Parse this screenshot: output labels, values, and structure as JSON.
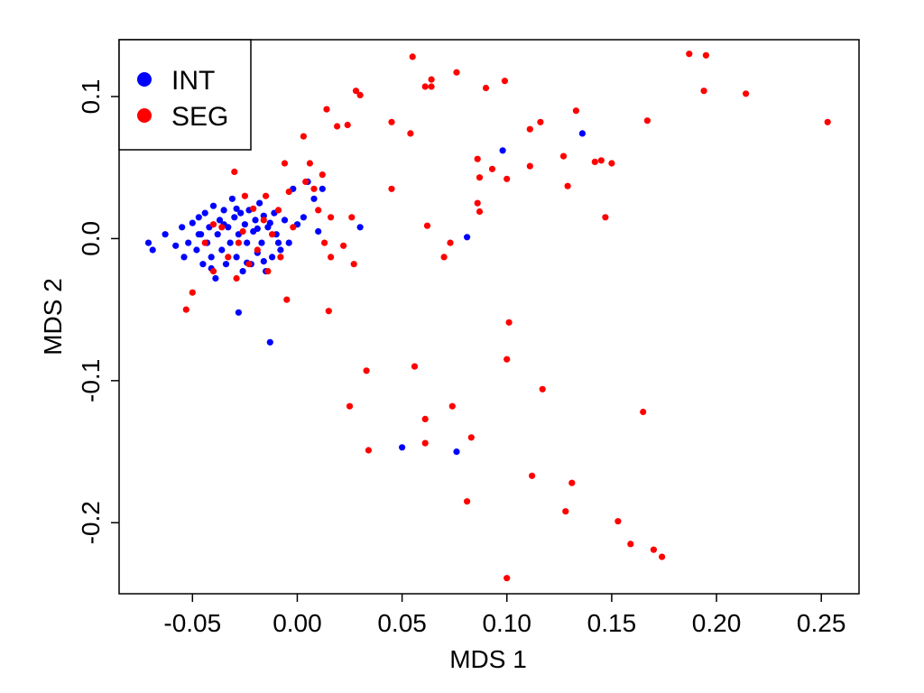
{
  "chart_data": {
    "type": "scatter",
    "title": "",
    "xlabel": "MDS 1",
    "ylabel": "MDS 2",
    "xlim": [
      -0.085,
      0.268
    ],
    "ylim": [
      -0.25,
      0.14
    ],
    "x_ticks": [
      -0.05,
      0.0,
      0.05,
      0.1,
      0.15,
      0.2,
      0.25
    ],
    "x_tick_labels": [
      "-0.05",
      "0.00",
      "0.05",
      "0.10",
      "0.15",
      "0.20",
      "0.25"
    ],
    "y_ticks": [
      -0.2,
      -0.1,
      0.0,
      0.1
    ],
    "y_tick_labels": [
      "-0.2",
      "-0.1",
      "0.0",
      "0.1"
    ],
    "grid": false,
    "legend_position": "top-left",
    "series": [
      {
        "name": "INT",
        "color": "#0000ff",
        "points": [
          [
            -0.071,
            -0.003
          ],
          [
            -0.069,
            -0.008
          ],
          [
            -0.063,
            0.003
          ],
          [
            -0.058,
            -0.005
          ],
          [
            -0.055,
            0.008
          ],
          [
            -0.054,
            -0.013
          ],
          [
            -0.052,
            -0.003
          ],
          [
            -0.05,
            0.011
          ],
          [
            -0.048,
            -0.008
          ],
          [
            -0.047,
            0.015
          ],
          [
            -0.046,
            0.003
          ],
          [
            -0.045,
            -0.018
          ],
          [
            -0.044,
            0.018
          ],
          [
            -0.043,
            -0.003
          ],
          [
            -0.042,
            0.008
          ],
          [
            -0.041,
            -0.013
          ],
          [
            -0.04,
            0.023
          ],
          [
            -0.039,
            -0.028
          ],
          [
            -0.038,
            0.003
          ],
          [
            -0.037,
            0.013
          ],
          [
            -0.036,
            -0.008
          ],
          [
            -0.035,
            0.02
          ],
          [
            -0.034,
            -0.018
          ],
          [
            -0.033,
            0.008
          ],
          [
            -0.032,
            -0.003
          ],
          [
            -0.031,
            0.028
          ],
          [
            -0.03,
            0.015
          ],
          [
            -0.029,
            -0.013
          ],
          [
            -0.028,
            0.003
          ],
          [
            -0.028,
            -0.052
          ],
          [
            -0.027,
            0.018
          ],
          [
            -0.026,
            -0.023
          ],
          [
            -0.025,
            0.01
          ],
          [
            -0.024,
            -0.003
          ],
          [
            -0.023,
            0.02
          ],
          [
            -0.022,
            -0.018
          ],
          [
            -0.021,
            0.005
          ],
          [
            -0.02,
            0.013
          ],
          [
            -0.019,
            -0.01
          ],
          [
            -0.018,
            0.025
          ],
          [
            -0.017,
            -0.003
          ],
          [
            -0.016,
            0.016
          ],
          [
            -0.015,
            -0.023
          ],
          [
            -0.014,
            0.008
          ],
          [
            -0.013,
            -0.073
          ],
          [
            -0.012,
            -0.013
          ],
          [
            -0.011,
            0.018
          ],
          [
            -0.01,
            0.003
          ],
          [
            -0.008,
            -0.008
          ],
          [
            -0.006,
            0.013
          ],
          [
            -0.004,
            -0.003
          ],
          [
            -0.002,
            0.035
          ],
          [
            0.0,
            0.01
          ],
          [
            0.003,
            0.015
          ],
          [
            0.005,
            0.04
          ],
          [
            0.008,
            0.028
          ],
          [
            0.01,
            0.005
          ],
          [
            0.012,
            0.035
          ],
          [
            0.03,
            0.008
          ],
          [
            -0.047,
            0.003
          ],
          [
            -0.041,
            -0.021
          ],
          [
            -0.035,
            0.01
          ],
          [
            -0.029,
            0.021
          ],
          [
            -0.024,
            -0.017
          ],
          [
            -0.019,
            0.007
          ],
          [
            -0.016,
            -0.016
          ],
          [
            -0.013,
            0.011
          ],
          [
            -0.009,
            -0.003
          ],
          [
            0.05,
            -0.147
          ],
          [
            0.076,
            -0.15
          ],
          [
            0.081,
            0.001
          ],
          [
            0.098,
            0.062
          ],
          [
            0.136,
            0.074
          ]
        ]
      },
      {
        "name": "SEG",
        "color": "#ff0000",
        "points": [
          [
            -0.053,
            -0.05
          ],
          [
            -0.05,
            -0.038
          ],
          [
            -0.044,
            -0.003
          ],
          [
            -0.04,
            -0.023
          ],
          [
            -0.036,
            0.008
          ],
          [
            -0.033,
            -0.013
          ],
          [
            -0.03,
            0.047
          ],
          [
            -0.029,
            -0.028
          ],
          [
            -0.026,
            0.005
          ],
          [
            -0.023,
            -0.018
          ],
          [
            -0.021,
            0.021
          ],
          [
            -0.019,
            -0.008
          ],
          [
            -0.016,
            0.013
          ],
          [
            -0.014,
            -0.023
          ],
          [
            -0.012,
            0.003
          ],
          [
            -0.009,
            0.02
          ],
          [
            -0.008,
            -0.013
          ],
          [
            -0.006,
            0.053
          ],
          [
            -0.005,
            -0.043
          ],
          [
            -0.004,
            0.033
          ],
          [
            -0.002,
            0.008
          ],
          [
            0.003,
            0.072
          ],
          [
            0.004,
            0.04
          ],
          [
            0.006,
            0.053
          ],
          [
            0.008,
            0.035
          ],
          [
            0.01,
            0.02
          ],
          [
            0.012,
            0.045
          ],
          [
            0.013,
            -0.003
          ],
          [
            0.014,
            0.091
          ],
          [
            0.015,
            -0.051
          ],
          [
            0.016,
            0.015
          ],
          [
            0.016,
            -0.013
          ],
          [
            0.019,
            0.079
          ],
          [
            0.022,
            -0.005
          ],
          [
            0.024,
            0.08
          ],
          [
            0.025,
            -0.118
          ],
          [
            0.026,
            0.015
          ],
          [
            0.027,
            -0.018
          ],
          [
            0.028,
            0.104
          ],
          [
            0.03,
            0.101
          ],
          [
            0.033,
            -0.093
          ],
          [
            0.034,
            -0.149
          ],
          [
            0.045,
            0.082
          ],
          [
            0.045,
            0.035
          ],
          [
            0.054,
            0.074
          ],
          [
            0.055,
            0.128
          ],
          [
            0.056,
            -0.09
          ],
          [
            0.061,
            0.107
          ],
          [
            0.061,
            -0.127
          ],
          [
            0.061,
            -0.144
          ],
          [
            0.064,
            0.112
          ],
          [
            0.064,
            0.107
          ],
          [
            0.07,
            -0.013
          ],
          [
            0.073,
            -0.003
          ],
          [
            0.074,
            -0.118
          ],
          [
            0.076,
            0.117
          ],
          [
            0.081,
            -0.185
          ],
          [
            0.083,
            -0.14
          ],
          [
            0.086,
            0.056
          ],
          [
            0.086,
            0.025
          ],
          [
            0.087,
            0.043
          ],
          [
            0.09,
            0.106
          ],
          [
            0.093,
            0.049
          ],
          [
            0.099,
            0.111
          ],
          [
            0.1,
            0.042
          ],
          [
            0.1,
            -0.085
          ],
          [
            0.101,
            -0.059
          ],
          [
            0.1,
            -0.239
          ],
          [
            0.111,
            0.077
          ],
          [
            0.111,
            0.051
          ],
          [
            0.112,
            -0.167
          ],
          [
            0.116,
            0.082
          ],
          [
            0.117,
            -0.106
          ],
          [
            0.127,
            0.058
          ],
          [
            0.128,
            -0.192
          ],
          [
            0.129,
            0.037
          ],
          [
            0.131,
            -0.172
          ],
          [
            0.133,
            0.09
          ],
          [
            0.142,
            0.054
          ],
          [
            0.145,
            0.055
          ],
          [
            0.147,
            0.015
          ],
          [
            0.15,
            0.053
          ],
          [
            0.153,
            -0.199
          ],
          [
            0.159,
            -0.215
          ],
          [
            0.165,
            -0.122
          ],
          [
            0.167,
            0.083
          ],
          [
            0.17,
            -0.219
          ],
          [
            0.174,
            -0.224
          ],
          [
            0.187,
            0.13
          ],
          [
            0.194,
            0.104
          ],
          [
            0.195,
            0.129
          ],
          [
            0.214,
            0.102
          ],
          [
            0.253,
            0.082
          ],
          [
            0.087,
            0.019
          ],
          [
            0.062,
            0.009
          ],
          [
            -0.025,
            0.03
          ],
          [
            -0.015,
            0.03
          ],
          [
            -0.04,
            0.01
          ],
          [
            -0.028,
            -0.003
          ]
        ]
      }
    ]
  }
}
